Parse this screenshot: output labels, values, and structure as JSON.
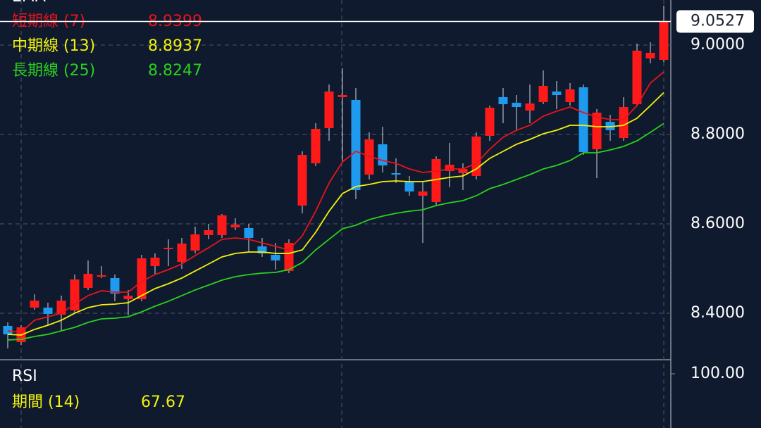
{
  "chart_data": {
    "type": "candlestick",
    "indicator_title": "EMA",
    "up_color": "#ff1a1a",
    "down_color": "#1e9bef",
    "ylim": [
      8.2976,
      9.1008
    ],
    "yticks": [
      {
        "value": 8.4,
        "label": "8.4000"
      },
      {
        "value": 8.6,
        "label": "8.6000"
      },
      {
        "value": 8.8,
        "label": "8.8000"
      },
      {
        "value": 9.0,
        "label": "9.0000"
      }
    ],
    "grid": true,
    "open": [
      8.3717,
      8.3354,
      8.4126,
      8.4126,
      8.3969,
      8.4063,
      8.4567,
      8.4819,
      8.4787,
      8.4315,
      8.4315,
      8.5055,
      8.5433,
      8.515,
      8.5402,
      8.5748,
      8.5748,
      8.5921,
      8.5906,
      8.5496,
      8.5307,
      8.4945,
      8.6409,
      8.7354,
      8.8142,
      8.8835,
      8.8772,
      8.7102,
      8.778,
      8.7134,
      8.6945,
      8.663,
      8.6488,
      8.7181,
      8.7134,
      8.7071,
      8.7969,
      8.8835,
      8.8709,
      8.8535,
      8.8724,
      8.8961,
      8.8724,
      8.9055,
      8.7669,
      8.8283,
      8.7921,
      8.8677,
      8.9701,
      8.9669
    ],
    "high": [
      8.3795,
      8.3732,
      8.4425,
      8.4236,
      8.4394,
      8.4866,
      8.5181,
      8.5055,
      8.4866,
      8.452,
      8.5307,
      8.5339,
      8.5654,
      8.5685,
      8.5937,
      8.6,
      8.622,
      8.6126,
      8.6,
      8.5685,
      8.5575,
      8.5654,
      8.7622,
      8.8252,
      8.9118,
      8.948,
      8.9039,
      8.8047,
      8.8173,
      8.7465,
      8.7071,
      8.6945,
      8.7512,
      8.7811,
      8.7354,
      8.8047,
      8.8646,
      8.9039,
      8.8882,
      8.9118,
      8.9433,
      8.9197,
      8.915,
      8.9118,
      8.8567,
      8.8441,
      8.8835,
      9.0031,
      9.0063,
      9.0882
    ],
    "low": [
      8.3213,
      8.3291,
      8.4079,
      8.3717,
      8.3606,
      8.4,
      8.452,
      8.4787,
      8.4268,
      8.3953,
      8.4268,
      8.4866,
      8.5055,
      8.4992,
      8.5339,
      8.5654,
      8.5685,
      8.5858,
      8.537,
      8.526,
      8.4976,
      8.4898,
      8.6236,
      8.7291,
      8.7858,
      8.7386,
      8.6551,
      8.6992,
      8.715,
      8.6913,
      8.663,
      8.5575,
      8.6409,
      8.6819,
      8.6756,
      8.6992,
      8.7858,
      8.8252,
      8.8094,
      8.8252,
      8.8677,
      8.8567,
      8.8646,
      8.7543,
      8.7024,
      8.7858,
      8.7858,
      8.8646,
      8.9591,
      8.9622
    ],
    "close": [
      8.3528,
      8.3685,
      8.4283,
      8.3984,
      8.4283,
      8.4756,
      8.4882,
      8.485,
      8.4441,
      8.4394,
      8.5228,
      8.5244,
      8.5465,
      8.5559,
      8.5764,
      8.5858,
      8.6189,
      8.5984,
      8.5685,
      8.5339,
      8.5181,
      8.5575,
      8.7543,
      8.8126,
      8.8961,
      8.8882,
      8.6756,
      8.789,
      8.7307,
      8.7102,
      8.6724,
      8.6724,
      8.7449,
      8.7323,
      8.7228,
      8.7953,
      8.8598,
      8.8677,
      8.8614,
      8.8693,
      8.9087,
      8.8882,
      8.9008,
      8.7606,
      8.8488,
      8.8094,
      8.8614,
      8.9874,
      8.9827,
      9.0527
    ],
    "series": [
      {
        "name": "短期線 (7)",
        "color": "#e8141b",
        "values": [
          8.3606,
          8.3575,
          8.3843,
          8.3921,
          8.4,
          8.4205,
          8.4394,
          8.4504,
          8.4472,
          8.4472,
          8.4709,
          8.4866,
          8.4976,
          8.5102,
          8.5291,
          8.5465,
          8.5654,
          8.5685,
          8.5654,
          8.5575,
          8.5496,
          8.5417,
          8.5732,
          8.6283,
          8.6913,
          8.7386,
          8.7622,
          8.7512,
          8.7417,
          8.7354,
          8.7228,
          8.715,
          8.7181,
          8.7228,
          8.7228,
          8.7354,
          8.7669,
          8.7937,
          8.8094,
          8.8205,
          8.8409,
          8.852,
          8.8614,
          8.8488,
          8.8394,
          8.8331,
          8.8331,
          8.8646,
          8.915,
          8.9399
        ]
      },
      {
        "name": "中期線 (13)",
        "color": "#f2f20a",
        "values": [
          8.3528,
          8.3512,
          8.3638,
          8.3732,
          8.3843,
          8.4,
          8.4126,
          8.4189,
          8.4205,
          8.4236,
          8.4394,
          8.4551,
          8.4661,
          8.4787,
          8.4945,
          8.5102,
          8.526,
          8.5339,
          8.537,
          8.537,
          8.5339,
          8.5339,
          8.5417,
          8.5811,
          8.6283,
          8.6677,
          8.6835,
          8.6882,
          8.6945,
          8.6961,
          8.6945,
          8.6945,
          8.6992,
          8.7039,
          8.7071,
          8.7228,
          8.7465,
          8.7622,
          8.778,
          8.789,
          8.8016,
          8.8094,
          8.8205,
          8.8205,
          8.8173,
          8.8173,
          8.8205,
          8.8362,
          8.8646,
          8.8937
        ]
      },
      {
        "name": "長期線 (25)",
        "color": "#2ad11c",
        "values": [
          8.3402,
          8.3417,
          8.348,
          8.3528,
          8.3606,
          8.3685,
          8.3795,
          8.3874,
          8.389,
          8.3921,
          8.4031,
          8.4157,
          8.4268,
          8.4394,
          8.452,
          8.463,
          8.474,
          8.4819,
          8.4866,
          8.4898,
          8.4913,
          8.4976,
          8.5134,
          8.5417,
          8.5654,
          8.589,
          8.5969,
          8.6094,
          8.6173,
          8.6236,
          8.6283,
          8.6315,
          8.6409,
          8.6472,
          8.652,
          8.663,
          8.6787,
          8.6882,
          8.6992,
          8.7102,
          8.7228,
          8.7307,
          8.7417,
          8.7591,
          8.7591,
          8.7654,
          8.7732,
          8.7858,
          8.8047,
          8.8247
        ]
      }
    ],
    "rsi": {
      "title": "RSI",
      "period_label": "期間 (14)",
      "value": 67.67,
      "color": "#f2f20a",
      "yticks": [
        {
          "value": 100,
          "label": "100.00"
        }
      ]
    }
  }
}
